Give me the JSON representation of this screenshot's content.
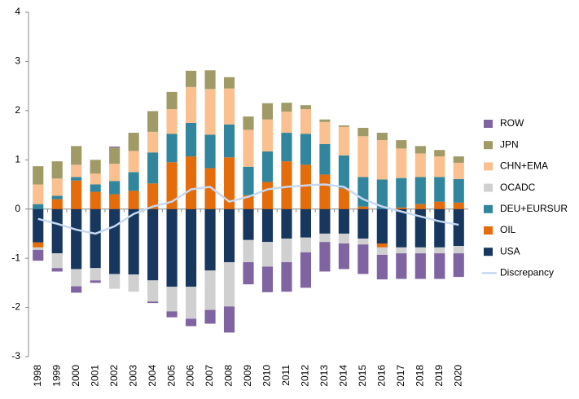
{
  "chart_data": {
    "type": "bar",
    "categories": [
      "1998",
      "1999",
      "2000",
      "2001",
      "2002",
      "2003",
      "2004",
      "2005",
      "2006",
      "2007",
      "2008",
      "2009",
      "2010",
      "2011",
      "2012",
      "2013",
      "2014",
      "2015",
      "2016",
      "2017",
      "2018",
      "2019",
      "2020"
    ],
    "series": [
      {
        "name": "USA",
        "color": "#17375e",
        "values": [
          -0.68,
          -0.9,
          -1.22,
          -1.2,
          -1.32,
          -1.33,
          -1.45,
          -1.58,
          -1.58,
          -1.25,
          -1.08,
          -0.63,
          -0.67,
          -0.6,
          -0.58,
          -0.5,
          -0.5,
          -0.6,
          -0.7,
          -0.78,
          -0.78,
          -0.78,
          -0.75
        ]
      },
      {
        "name": "OIL",
        "color": "#e46c0a",
        "values": [
          -0.1,
          0.2,
          0.58,
          0.35,
          0.3,
          0.37,
          0.52,
          0.95,
          1.07,
          0.83,
          1.05,
          0.28,
          0.55,
          0.97,
          0.9,
          0.7,
          0.42,
          0.05,
          -0.08,
          0.03,
          0.1,
          0.15,
          0.13
        ]
      },
      {
        "name": "DEU+EURSUR",
        "color": "#31859c",
        "values": [
          0.1,
          0.07,
          0.07,
          0.15,
          0.27,
          0.38,
          0.63,
          0.58,
          0.68,
          0.68,
          0.67,
          0.58,
          0.62,
          0.58,
          0.63,
          0.62,
          0.67,
          0.6,
          0.6,
          0.6,
          0.55,
          0.5,
          0.48
        ]
      },
      {
        "name": "OCADC",
        "color": "#d0d0d0",
        "values": [
          -0.05,
          -0.3,
          -0.35,
          -0.25,
          -0.3,
          -0.35,
          -0.43,
          -0.5,
          -0.65,
          -0.8,
          -0.9,
          -0.45,
          -0.5,
          -0.48,
          -0.3,
          -0.17,
          -0.2,
          -0.12,
          -0.15,
          -0.12,
          -0.12,
          -0.12,
          -0.15
        ]
      },
      {
        "name": "CHN+EMA",
        "color": "#fac090",
        "values": [
          0.4,
          0.35,
          0.25,
          0.22,
          0.35,
          0.43,
          0.42,
          0.5,
          0.73,
          0.93,
          0.73,
          0.75,
          0.65,
          0.43,
          0.5,
          0.45,
          0.58,
          0.83,
          0.8,
          0.6,
          0.48,
          0.42,
          0.33
        ]
      },
      {
        "name": "JPN",
        "color": "#a09a66",
        "values": [
          0.37,
          0.35,
          0.38,
          0.28,
          0.33,
          0.37,
          0.42,
          0.35,
          0.33,
          0.38,
          0.23,
          0.27,
          0.33,
          0.18,
          0.08,
          0.05,
          0.03,
          0.17,
          0.15,
          0.17,
          0.15,
          0.13,
          0.13
        ]
      },
      {
        "name": "ROW",
        "color": "#8064a2",
        "values": [
          -0.22,
          -0.07,
          -0.13,
          -0.05,
          0.02,
          0,
          -0.03,
          -0.12,
          -0.15,
          -0.28,
          -0.53,
          -0.45,
          -0.52,
          -0.6,
          -0.72,
          -0.6,
          -0.52,
          -0.6,
          -0.5,
          -0.52,
          -0.52,
          -0.52,
          -0.48
        ]
      },
      {
        "name": "Discrepancy",
        "type": "line",
        "color": "#c6d9f1",
        "values": [
          -0.2,
          -0.3,
          -0.42,
          -0.5,
          -0.35,
          -0.1,
          0.05,
          0.15,
          0.4,
          0.45,
          0.15,
          0.25,
          0.4,
          0.45,
          0.48,
          0.5,
          0.45,
          0.2,
          0.05,
          -0.05,
          -0.15,
          -0.25,
          -0.32
        ]
      }
    ],
    "ylim": [
      -3,
      4
    ],
    "yticks": [
      -3,
      -2,
      -1,
      0,
      1,
      2,
      3,
      4
    ]
  }
}
